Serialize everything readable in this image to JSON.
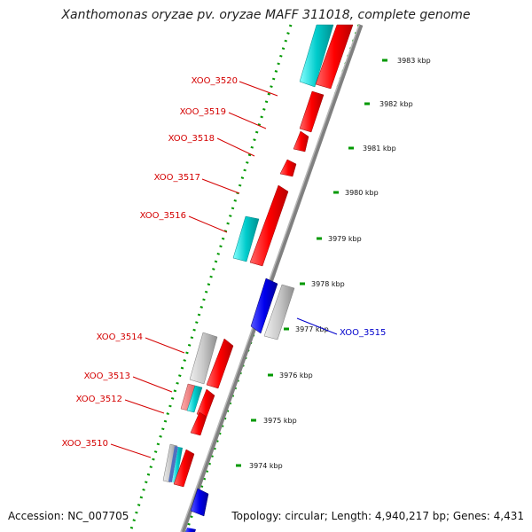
{
  "header": {
    "title": "Xanthomonas oryzae pv. oryzae MAFF 311018, complete genome"
  },
  "footer": {
    "accession": "Accession: NC_007705",
    "summary": "Topology: circular; Length: 4,940,217 bp; Genes: 4,431"
  },
  "colors": {
    "label_red": "#d40000",
    "label_blue": "#0000cc",
    "gene_red": "#ff0000",
    "gene_blue": "#0000ee",
    "gene_cyan": "#00cccc",
    "gene_gray": "#c8c8c8",
    "backbone": "#808080",
    "dotted_guides": "#009900"
  },
  "ticks": [
    {
      "label": "3983 kbp"
    },
    {
      "label": "3982 kbp"
    },
    {
      "label": "3981 kbp"
    },
    {
      "label": "3980 kbp"
    },
    {
      "label": "3979 kbp"
    },
    {
      "label": "3978 kbp"
    },
    {
      "label": "3977 kbp"
    },
    {
      "label": "3976 kbp"
    },
    {
      "label": "3975 kbp"
    },
    {
      "label": "3974 kbp"
    }
  ],
  "gene_labels": [
    {
      "text": "XOO_3520",
      "color": "red"
    },
    {
      "text": "XOO_3519",
      "color": "red"
    },
    {
      "text": "XOO_3518",
      "color": "red"
    },
    {
      "text": "XOO_3517",
      "color": "red"
    },
    {
      "text": "XOO_3516",
      "color": "red"
    },
    {
      "text": "XOO_3515",
      "color": "blue"
    },
    {
      "text": "XOO_3514",
      "color": "red"
    },
    {
      "text": "XOO_3513",
      "color": "red"
    },
    {
      "text": "XOO_3512",
      "color": "red"
    },
    {
      "text": "XOO_3510",
      "color": "red"
    }
  ]
}
